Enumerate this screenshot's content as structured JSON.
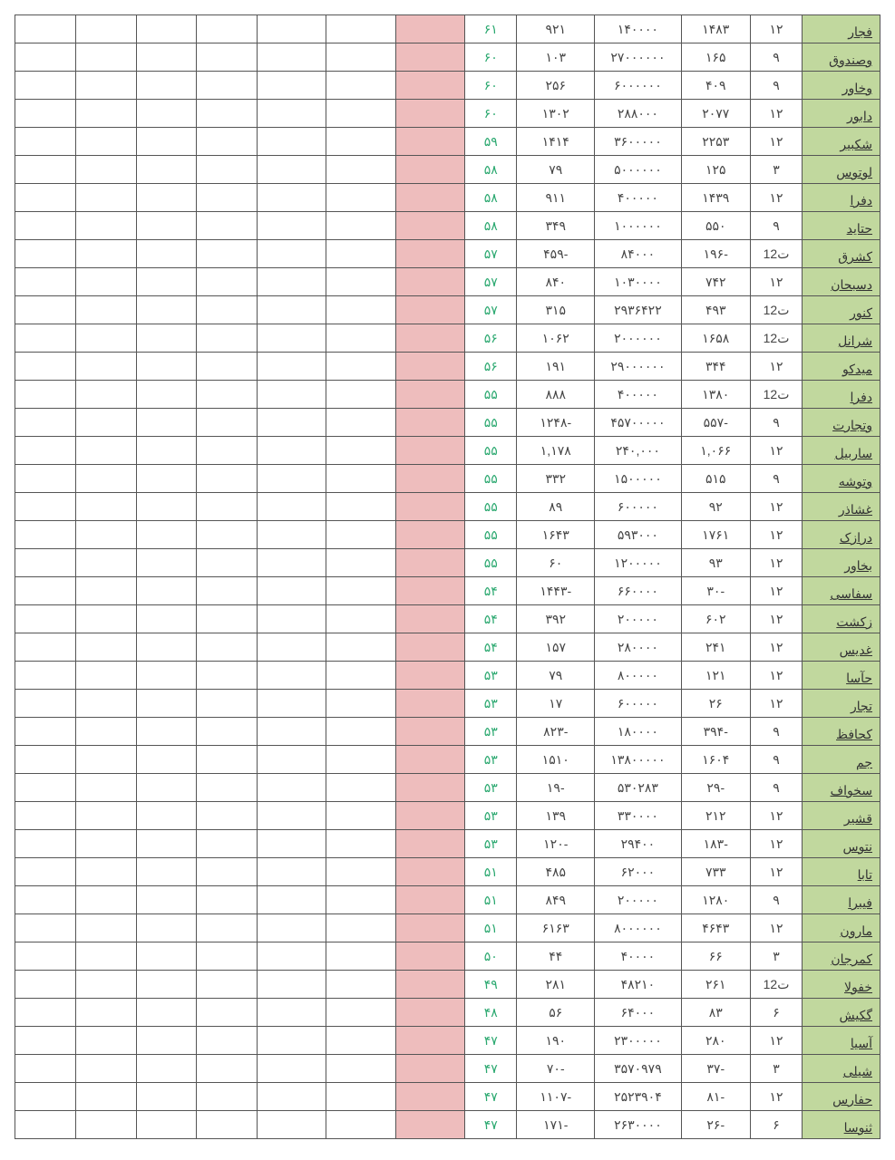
{
  "table": {
    "colors": {
      "name_bg": "#c1d89e",
      "pink_bg": "#eebdbd",
      "green_text": "#2aa86f",
      "border": "#555555",
      "text": "#444444",
      "background": "#ffffff"
    },
    "column_layout": [
      "name",
      "period",
      "v1",
      "v2",
      "v3",
      "green",
      "pink",
      "blank",
      "blank",
      "blank",
      "blank",
      "blank",
      "blank"
    ],
    "rows": [
      {
        "name": "فجار",
        "period": "۱۲",
        "v1": "۱۴۸۳",
        "v2": "۱۴۰۰۰۰",
        "v3": "۹۲۱",
        "green": "۶۱"
      },
      {
        "name": "وصندوق",
        "period": "۹",
        "v1": "۱۶۵",
        "v2": "۲۷۰۰۰۰۰۰",
        "v3": "۱۰۳",
        "green": "۶۰"
      },
      {
        "name": "وخاور",
        "period": "۹",
        "v1": "۴۰۹",
        "v2": "۶۰۰۰۰۰۰",
        "v3": "۲۵۶",
        "green": "۶۰"
      },
      {
        "name": "دابور",
        "period": "۱۲",
        "v1": "۲۰۷۷",
        "v2": "۲۸۸۰۰۰",
        "v3": "۱۳۰۲",
        "green": "۶۰"
      },
      {
        "name": "شکبیر",
        "period": "۱۲",
        "v1": "۲۲۵۳",
        "v2": "۳۶۰۰۰۰۰",
        "v3": "۱۴۱۴",
        "green": "۵۹"
      },
      {
        "name": "لوتوس",
        "period": "۳",
        "v1": "۱۲۵",
        "v2": "۵۰۰۰۰۰۰",
        "v3": "۷۹",
        "green": "۵۸"
      },
      {
        "name": "دفرا",
        "period": "۱۲",
        "v1": "۱۴۳۹",
        "v2": "۴۰۰۰۰۰",
        "v3": "۹۱۱",
        "green": "۵۸"
      },
      {
        "name": "حتاید",
        "period": "۹",
        "v1": "۵۵۰",
        "v2": "۱۰۰۰۰۰۰",
        "v3": "۳۴۹",
        "green": "۵۸"
      },
      {
        "name": "کشرق",
        "period": "ت12",
        "v1": "-۱۹۶",
        "v2": "۸۴۰۰۰",
        "v3": "-۴۵۹",
        "green": "۵۷"
      },
      {
        "name": "دسبحان",
        "period": "۱۲",
        "v1": "۷۴۲",
        "v2": "۱۰۳۰۰۰۰",
        "v3": "۸۴۰",
        "green": "۵۷"
      },
      {
        "name": "کنور",
        "period": "ت12",
        "v1": "۴۹۳",
        "v2": "۲۹۳۶۴۲۲",
        "v3": "۳۱۵",
        "green": "۵۷"
      },
      {
        "name": "شرانل",
        "period": "ت12",
        "v1": "۱۶۵۸",
        "v2": "۲۰۰۰۰۰۰",
        "v3": "۱۰۶۲",
        "green": "۵۶"
      },
      {
        "name": "میدکو",
        "period": "۱۲",
        "v1": "۳۴۴",
        "v2": "۲۹۰۰۰۰۰۰",
        "v3": "۱۹۱",
        "green": "۵۶"
      },
      {
        "name": "دفرا",
        "period": "ت12",
        "v1": "۱۳۸۰",
        "v2": "۴۰۰۰۰۰",
        "v3": "۸۸۸",
        "green": "۵۵"
      },
      {
        "name": "وتجارت",
        "period": "۹",
        "v1": "-۵۵۷",
        "v2": "۴۵۷۰۰۰۰۰",
        "v3": "-۱۲۴۸",
        "green": "۵۵"
      },
      {
        "name": "ساربیل",
        "period": "۱۲",
        "v1": "۱,۰۶۶",
        "v2": "۲۴۰,۰۰۰",
        "v3": "۱,۱۷۸",
        "green": "۵۵"
      },
      {
        "name": "وتوشه",
        "period": "۹",
        "v1": "۵۱۵",
        "v2": "۱۵۰۰۰۰۰",
        "v3": "۳۳۲",
        "green": "۵۵"
      },
      {
        "name": "غشاذر",
        "period": "۱۲",
        "v1": "۹۲",
        "v2": "۶۰۰۰۰۰",
        "v3": "۸۹",
        "green": "۵۵"
      },
      {
        "name": "درازک",
        "period": "۱۲",
        "v1": "۱۷۶۱",
        "v2": "۵۹۳۰۰۰",
        "v3": "۱۶۴۳",
        "green": "۵۵"
      },
      {
        "name": "بخاور",
        "period": "۱۲",
        "v1": "۹۳",
        "v2": "۱۲۰۰۰۰۰",
        "v3": "۶۰",
        "green": "۵۵"
      },
      {
        "name": "سفاسی",
        "period": "۱۲",
        "v1": "-۳۰",
        "v2": "۶۶۰۰۰۰",
        "v3": "-۱۴۴۳",
        "green": "۵۴"
      },
      {
        "name": "زکشت",
        "period": "۱۲",
        "v1": "۶۰۲",
        "v2": "۲۰۰۰۰۰",
        "v3": "۳۹۲",
        "green": "۵۴"
      },
      {
        "name": "غدیس",
        "period": "۱۲",
        "v1": "۲۴۱",
        "v2": "۲۸۰۰۰۰",
        "v3": "۱۵۷",
        "green": "۵۴"
      },
      {
        "name": "حآسا",
        "period": "۱۲",
        "v1": "۱۲۱",
        "v2": "۸۰۰۰۰۰",
        "v3": "۷۹",
        "green": "۵۳"
      },
      {
        "name": "تجار",
        "period": "۱۲",
        "v1": "۲۶",
        "v2": "۶۰۰۰۰۰",
        "v3": "۱۷",
        "green": "۵۳"
      },
      {
        "name": "کحافظ",
        "period": "۹",
        "v1": "-۳۹۴",
        "v2": "۱۸۰۰۰۰",
        "v3": "-۸۲۳",
        "green": "۵۳"
      },
      {
        "name": "جم",
        "period": "۹",
        "v1": "۱۶۰۴",
        "v2": "۱۳۸۰۰۰۰۰",
        "v3": "۱۵۱۰",
        "green": "۵۳"
      },
      {
        "name": "سخواف",
        "period": "۹",
        "v1": "-۲۹",
        "v2": "۵۳۰۲۸۳",
        "v3": "-۱۹",
        "green": "۵۳"
      },
      {
        "name": "قشیر",
        "period": "۱۲",
        "v1": "۲۱۲",
        "v2": "۳۳۰۰۰۰",
        "v3": "۱۳۹",
        "green": "۵۳"
      },
      {
        "name": "نتوس",
        "period": "۱۲",
        "v1": "-۱۸۳",
        "v2": "۲۹۴۰۰",
        "v3": "-۱۲۰",
        "green": "۵۳"
      },
      {
        "name": "تابا",
        "period": "۱۲",
        "v1": "۷۳۳",
        "v2": "۶۲۰۰۰",
        "v3": "۴۸۵",
        "green": "۵۱"
      },
      {
        "name": "فیبرا",
        "period": "۹",
        "v1": "۱۲۸۰",
        "v2": "۲۰۰۰۰۰",
        "v3": "۸۴۹",
        "green": "۵۱"
      },
      {
        "name": "مارون",
        "period": "۱۲",
        "v1": "۴۶۴۳",
        "v2": "۸۰۰۰۰۰۰",
        "v3": "۶۱۶۳",
        "green": "۵۱"
      },
      {
        "name": "کمرجان",
        "period": "۳",
        "v1": "۶۶",
        "v2": "۴۰۰۰۰",
        "v3": "۴۴",
        "green": "۵۰"
      },
      {
        "name": "خفولا",
        "period": "ت12",
        "v1": "۲۶۱",
        "v2": "۴۸۲۱۰",
        "v3": "۲۸۱",
        "green": "۴۹"
      },
      {
        "name": "گکیش",
        "period": "۶",
        "v1": "۸۳",
        "v2": "۶۴۰۰۰",
        "v3": "۵۶",
        "green": "۴۸"
      },
      {
        "name": "آسیا",
        "period": "۱۲",
        "v1": "۲۸۰",
        "v2": "۲۳۰۰۰۰۰",
        "v3": "۱۹۰",
        "green": "۴۷"
      },
      {
        "name": "شیلی",
        "period": "۳",
        "v1": "-۳۷",
        "v2": "۳۵۷۰۹۷۹",
        "v3": "-۷۰",
        "green": "۴۷"
      },
      {
        "name": "حفارس",
        "period": "۱۲",
        "v1": "-۸۱",
        "v2": "۲۵۲۳۹۰۴",
        "v3": "-۱۱۰۷",
        "green": "۴۷"
      },
      {
        "name": "ثنوسا",
        "period": "۶",
        "v1": "-۲۶",
        "v2": "۲۶۳۰۰۰۰",
        "v3": "-۱۷۱",
        "green": "۴۷"
      }
    ]
  }
}
